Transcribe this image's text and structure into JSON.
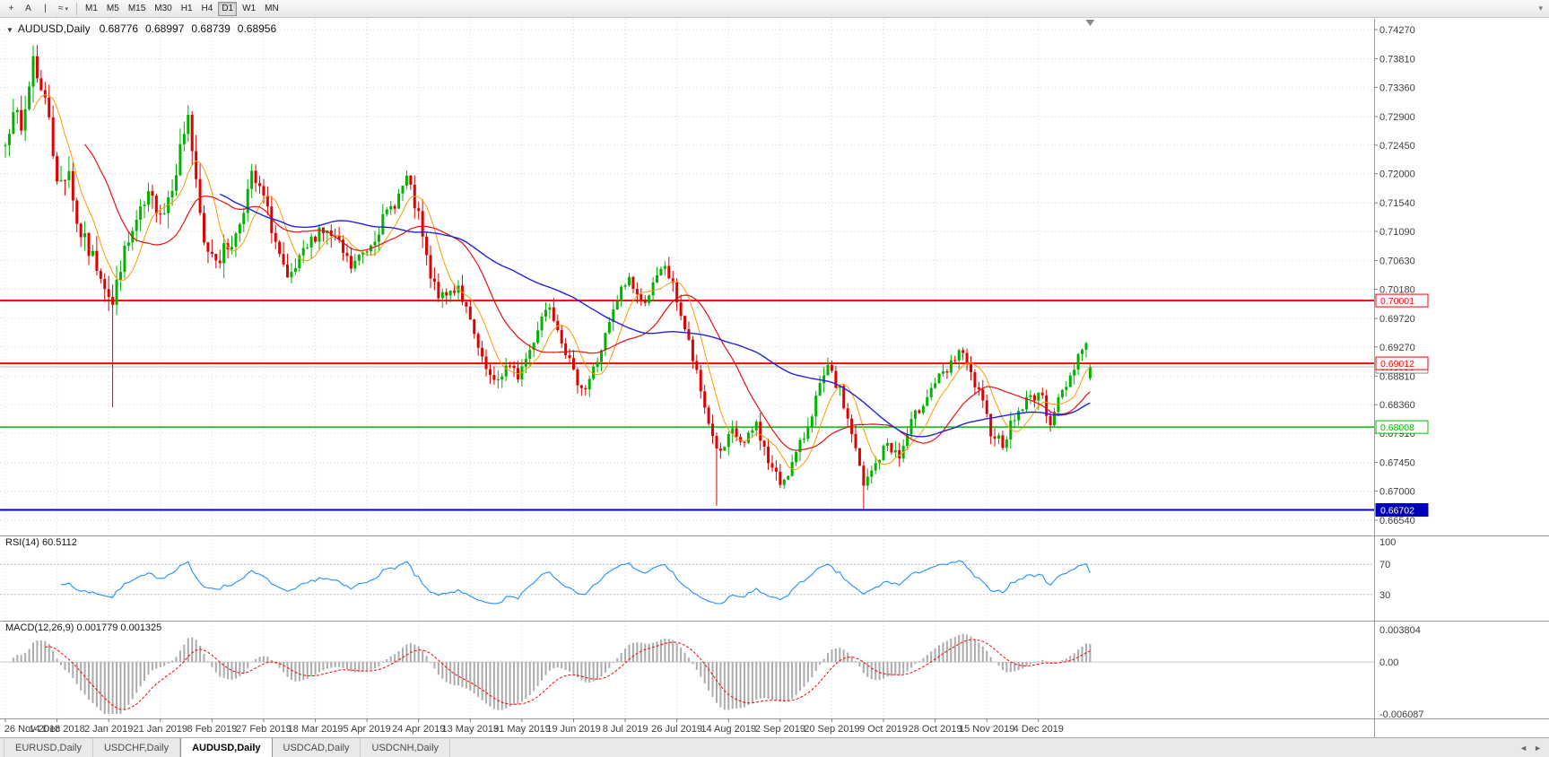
{
  "icons": {
    "collapse_arrow": "▼",
    "dropdown_arrow": "▾",
    "toolbar_overflow": "▾",
    "tab_scroll_left": "◄",
    "tab_scroll_right": "►"
  },
  "toolbar": {
    "tools": [
      {
        "name": "crosshair-tool",
        "glyph": "+"
      },
      {
        "name": "text-tool",
        "glyph": "A"
      },
      {
        "name": "vertical-line-tool",
        "glyph": "|"
      },
      {
        "name": "indicators-tool",
        "glyph": "≈"
      }
    ],
    "timeframes": [
      "M1",
      "M5",
      "M15",
      "M30",
      "H1",
      "H4",
      "D1",
      "W1",
      "MN"
    ],
    "active_timeframe": "D1"
  },
  "header": {
    "symbol_label": "AUDUSD,Daily",
    "open": "0.68776",
    "high": "0.68997",
    "low": "0.68739",
    "close": "0.68956"
  },
  "tabs": [
    {
      "label": "EURUSD,Daily",
      "active": false
    },
    {
      "label": "USDCHF,Daily",
      "active": false
    },
    {
      "label": "AUDUSD,Daily",
      "active": true
    },
    {
      "label": "USDCAD,Daily",
      "active": false
    },
    {
      "label": "USDCNH,Daily",
      "active": false
    }
  ],
  "chart_data": {
    "type": "candlestick",
    "symbol": "AUDUSD",
    "timeframe": "Daily",
    "ohlc_current": {
      "open": 0.68776,
      "high": 0.68997,
      "low": 0.68739,
      "close": 0.68956
    },
    "price_axis_labels": [
      "0.74270",
      "0.73810",
      "0.73360",
      "0.72900",
      "0.72450",
      "0.72000",
      "0.71540",
      "0.71090",
      "0.70630",
      "0.70180",
      "0.69720",
      "0.69270",
      "0.68810",
      "0.68360",
      "0.67910",
      "0.67450",
      "0.67000",
      "0.66540"
    ],
    "price_axis_range": {
      "top": 0.7427,
      "bottom": 0.6654
    },
    "date_labels": [
      "26 Nov 2018",
      "14 Dec 2018",
      "2 Jan 2019",
      "21 Jan 2019",
      "8 Feb 2019",
      "27 Feb 2019",
      "18 Mar 2019",
      "5 Apr 2019",
      "24 Apr 2019",
      "13 May 2019",
      "31 May 2019",
      "19 Jun 2019",
      "8 Jul 2019",
      "26 Jul 2019",
      "14 Aug 2019",
      "2 Sep 2019",
      "20 Sep 2019",
      "9 Oct 2019",
      "28 Oct 2019",
      "15 Nov 2019",
      "4 Dec 2019"
    ],
    "bars_per_label": 13,
    "bar_count": 274,
    "colors": {
      "up": "#00b300",
      "down": "#e00000",
      "grid": "#d8d8d8",
      "axis_text": "#3d3d3d",
      "separator": "#9a9a9a"
    },
    "close_anchors": [
      [
        0,
        0.7245
      ],
      [
        2,
        0.731
      ],
      [
        4,
        0.7262
      ],
      [
        6,
        0.734
      ],
      [
        7,
        0.7386
      ],
      [
        9,
        0.733
      ],
      [
        11,
        0.7296
      ],
      [
        13,
        0.718
      ],
      [
        16,
        0.7208
      ],
      [
        18,
        0.712
      ],
      [
        21,
        0.7078
      ],
      [
        24,
        0.7045
      ],
      [
        26,
        0.7012
      ],
      [
        27,
        0.6992
      ],
      [
        29,
        0.7058
      ],
      [
        33,
        0.7122
      ],
      [
        36,
        0.716
      ],
      [
        40,
        0.7142
      ],
      [
        43,
        0.721
      ],
      [
        46,
        0.7295
      ],
      [
        48,
        0.7178
      ],
      [
        50,
        0.7086
      ],
      [
        54,
        0.707
      ],
      [
        58,
        0.7102
      ],
      [
        62,
        0.7195
      ],
      [
        65,
        0.7162
      ],
      [
        68,
        0.7092
      ],
      [
        71,
        0.7026
      ],
      [
        75,
        0.7072
      ],
      [
        79,
        0.7115
      ],
      [
        83,
        0.7096
      ],
      [
        87,
        0.7052
      ],
      [
        91,
        0.7082
      ],
      [
        95,
        0.7126
      ],
      [
        99,
        0.7166
      ],
      [
        101,
        0.7192
      ],
      [
        104,
        0.713
      ],
      [
        107,
        0.7032
      ],
      [
        110,
        0.7002
      ],
      [
        114,
        0.7026
      ],
      [
        117,
        0.6962
      ],
      [
        120,
        0.6902
      ],
      [
        123,
        0.6866
      ],
      [
        126,
        0.6896
      ],
      [
        129,
        0.6882
      ],
      [
        132,
        0.6922
      ],
      [
        135,
        0.6976
      ],
      [
        137,
        0.6996
      ],
      [
        140,
        0.6942
      ],
      [
        143,
        0.6882
      ],
      [
        146,
        0.6862
      ],
      [
        149,
        0.6906
      ],
      [
        152,
        0.6962
      ],
      [
        155,
        0.7016
      ],
      [
        157,
        0.7036
      ],
      [
        160,
        0.6996
      ],
      [
        163,
        0.7022
      ],
      [
        166,
        0.7056
      ],
      [
        169,
        0.7002
      ],
      [
        172,
        0.6932
      ],
      [
        175,
        0.6856
      ],
      [
        178,
        0.6786
      ],
      [
        180,
        0.6756
      ],
      [
        183,
        0.6792
      ],
      [
        186,
        0.6772
      ],
      [
        189,
        0.6806
      ],
      [
        192,
        0.6746
      ],
      [
        195,
        0.6712
      ],
      [
        198,
        0.6742
      ],
      [
        201,
        0.6786
      ],
      [
        204,
        0.6846
      ],
      [
        207,
        0.6892
      ],
      [
        210,
        0.6856
      ],
      [
        213,
        0.6792
      ],
      [
        216,
        0.6706
      ],
      [
        219,
        0.6742
      ],
      [
        222,
        0.6776
      ],
      [
        225,
        0.6752
      ],
      [
        228,
        0.6806
      ],
      [
        231,
        0.6842
      ],
      [
        234,
        0.6872
      ],
      [
        237,
        0.6886
      ],
      [
        240,
        0.6922
      ],
      [
        242,
        0.6896
      ],
      [
        245,
        0.6852
      ],
      [
        248,
        0.6796
      ],
      [
        251,
        0.6776
      ],
      [
        254,
        0.6816
      ],
      [
        257,
        0.6842
      ],
      [
        260,
        0.6856
      ],
      [
        263,
        0.6812
      ],
      [
        265,
        0.6842
      ],
      [
        268,
        0.6882
      ],
      [
        270,
        0.6916
      ],
      [
        272,
        0.6932
      ],
      [
        273,
        0.68956
      ]
    ],
    "special_bars": {
      "7": {
        "high": 0.7402
      },
      "27": {
        "low": 0.6832
      },
      "46": {
        "high": 0.7308
      },
      "179": {
        "low": 0.6677
      },
      "216": {
        "low": 0.6672
      },
      "273": {
        "open": 0.68776,
        "high": 0.68997,
        "low": 0.68739,
        "close": 0.68956
      }
    },
    "noise_seed": 7,
    "noise_amp": 0.001,
    "range_amp": 0.003,
    "moving_averages": [
      {
        "name": "fast",
        "period": 8,
        "color": "#ff9900",
        "width": 1
      },
      {
        "name": "mid",
        "period": 21,
        "color": "#e81010",
        "width": 1.2
      },
      {
        "name": "slow",
        "period": 55,
        "color": "#2222dd",
        "width": 1.4
      }
    ],
    "horizontal_lines": [
      {
        "price": 0.70001,
        "label": "0.70001",
        "color": "#ff0000",
        "width": 2,
        "tag": "outline"
      },
      {
        "price": 0.69012,
        "label": "0.69012",
        "color": "#ff0000",
        "width": 2,
        "tag": "outline"
      },
      {
        "price": 0.68008,
        "label": "0.68008",
        "color": "#00bb00",
        "width": 1.5,
        "tag": "outline"
      },
      {
        "price": 0.66702,
        "label": "0.66702",
        "color": "#0000bb",
        "width": 2,
        "tag": "filled"
      }
    ],
    "current_price_tag": "0.68956",
    "rsi": {
      "label": "RSI(14) 60.5112",
      "period": 14,
      "value": "60.5112",
      "axis_labels": [
        "100",
        "70",
        "30"
      ],
      "levels": [
        100,
        70,
        30
      ],
      "color": "#1e90ff"
    },
    "macd": {
      "label": "MACD(12,26,9) 0.001779 0.001325",
      "params": "12,26,9",
      "values": [
        "0.001779",
        "0.001325"
      ],
      "axis_labels": [
        "0.003804",
        "0.00",
        "-0.006087"
      ],
      "axis_top": 0.003804,
      "axis_bottom": -0.006087,
      "hist_color": "#ababab",
      "signal_color": "#ff0000"
    }
  }
}
